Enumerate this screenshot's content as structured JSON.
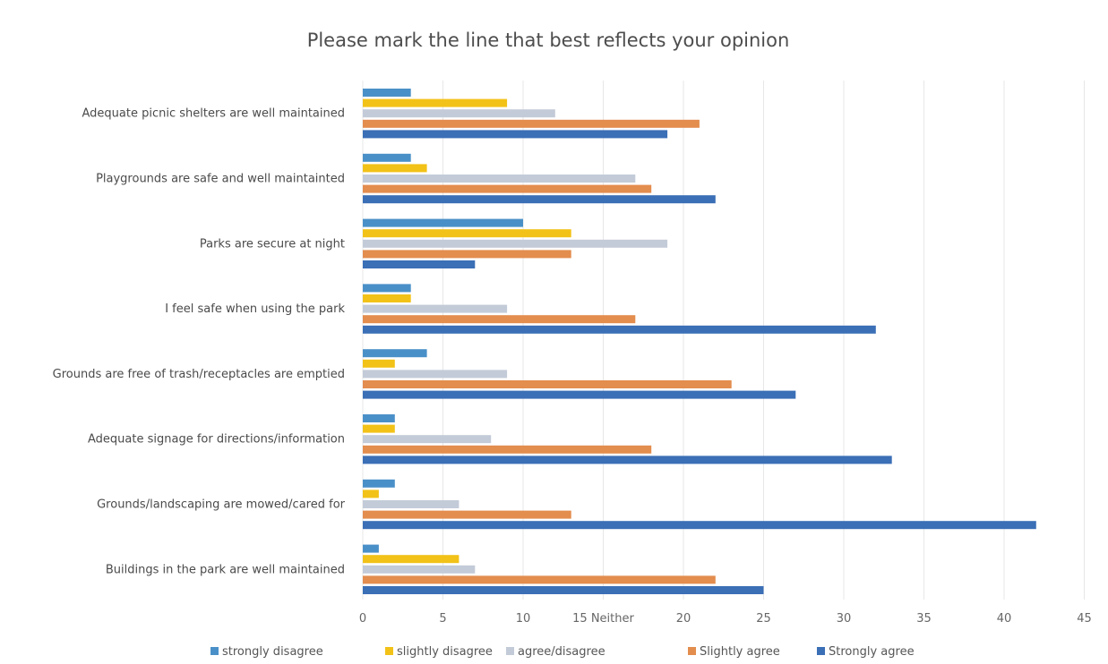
{
  "chart_data": {
    "type": "bar",
    "orientation": "horizontal",
    "title": "Please mark the line that best reflects your opinion",
    "xlabel": "",
    "ylabel": "",
    "xlim": [
      0,
      45
    ],
    "x_ticks": [
      "0",
      "5",
      "10",
      "15 Neither",
      "20",
      "25",
      "30",
      "35",
      "40",
      "45"
    ],
    "x_tick_values": [
      0,
      5,
      10,
      15,
      20,
      25,
      30,
      35,
      40,
      45
    ],
    "grid": true,
    "legend_position": "bottom",
    "categories": [
      "Adequate picnic shelters are well maintained",
      "Playgrounds are safe and well maintainted",
      "Parks are secure at night",
      "I feel safe when using the park",
      "Grounds are free of trash/receptacles are emptied",
      "Adequate signage for directions/information",
      "Grounds/landscaping  are mowed/cared for",
      "Buildings in the park are well maintained"
    ],
    "series": [
      {
        "name": "strongly disagree",
        "color": "#4a90c8",
        "values": [
          3,
          3,
          10,
          3,
          4,
          2,
          2,
          1
        ]
      },
      {
        "name": "slightly disagree",
        "color": "#f2c218",
        "values": [
          9,
          4,
          13,
          3,
          2,
          2,
          1,
          6
        ]
      },
      {
        "name": "agree/disagree",
        "color": "#c3cbd8",
        "values": [
          12,
          17,
          19,
          9,
          9,
          8,
          6,
          7
        ]
      },
      {
        "name": "Slightly agree",
        "color": "#e38d4e",
        "values": [
          21,
          18,
          13,
          17,
          23,
          18,
          13,
          22
        ]
      },
      {
        "name": "Strongly agree",
        "color": "#3b6fb6",
        "values": [
          19,
          22,
          7,
          32,
          27,
          33,
          42,
          25
        ]
      }
    ]
  }
}
